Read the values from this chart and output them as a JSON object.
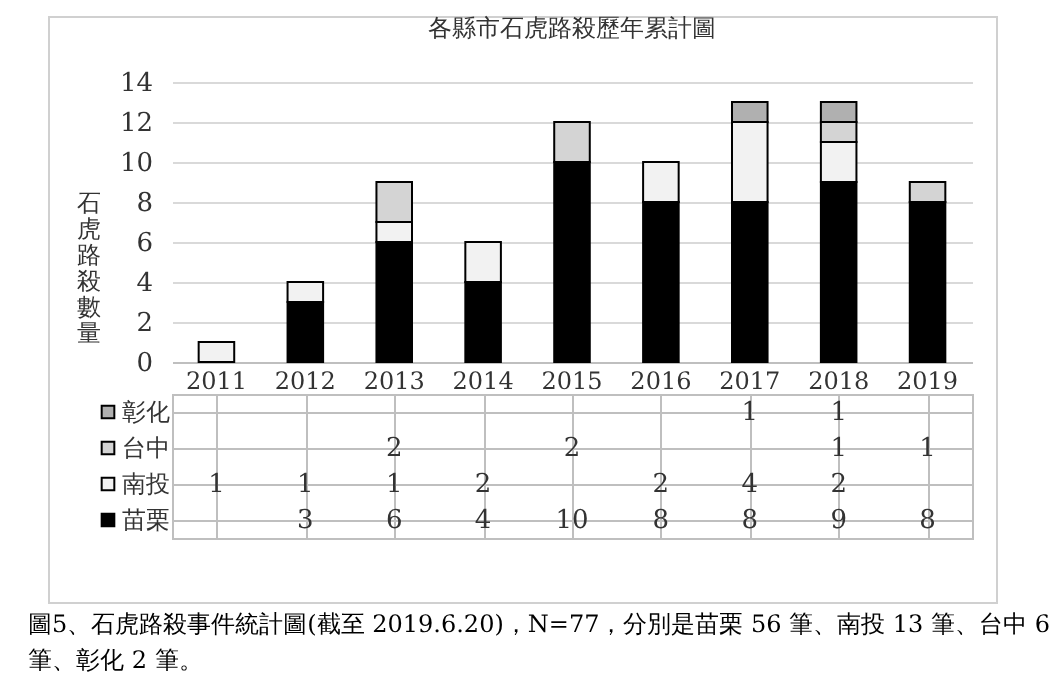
{
  "chart_data": {
    "type": "bar",
    "stacked": true,
    "title": "各縣市石虎路殺歷年累計圖",
    "ylabel": "石虎路殺數量",
    "categories": [
      "2011",
      "2012",
      "2013",
      "2014",
      "2015",
      "2016",
      "2017",
      "2018",
      "2019"
    ],
    "series": [
      {
        "name": "苗栗",
        "color": "#000000",
        "values": [
          null,
          3,
          6,
          4,
          10,
          8,
          8,
          9,
          8
        ]
      },
      {
        "name": "南投",
        "color": "#f2f2f2",
        "values": [
          1,
          1,
          1,
          2,
          null,
          2,
          4,
          2,
          null
        ]
      },
      {
        "name": "台中",
        "color": "#d4d4d4",
        "values": [
          null,
          null,
          2,
          null,
          2,
          null,
          null,
          1,
          1
        ]
      },
      {
        "name": "彰化",
        "color": "#b0b0b0",
        "values": [
          null,
          null,
          null,
          null,
          null,
          null,
          1,
          1,
          null
        ]
      }
    ],
    "ylim": [
      0,
      14
    ],
    "yticks": [
      0,
      2,
      4,
      6,
      8,
      10,
      12,
      14
    ],
    "grid": "y",
    "legend": "bottom",
    "data_labels": true,
    "annotations": [
      "圖5、石虎路殺事件統計圖(截至 2019.6.20)，N=77，分別是苗栗 56 筆、南投 13 筆、台中 6 筆、彰化 2 筆。"
    ]
  }
}
